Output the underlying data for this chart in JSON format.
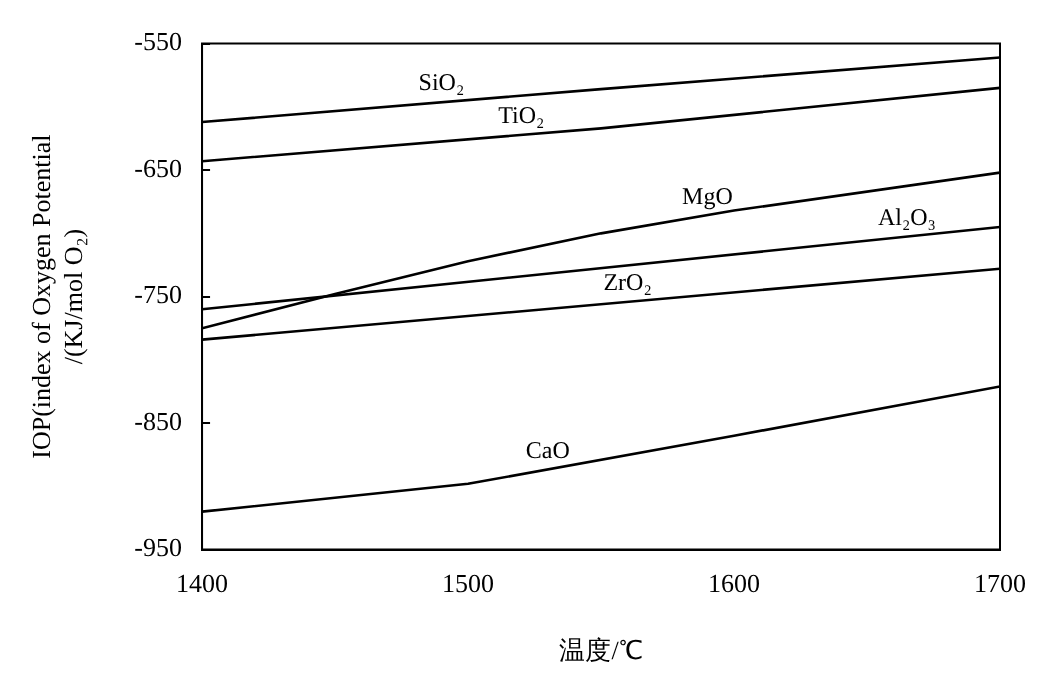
{
  "chart_data": {
    "type": "line",
    "xlabel": "温度/℃",
    "ylabel": "IOP(index of Oxygen Potential\n/(KJ/mol O₂)",
    "xlim": [
      1400,
      1700
    ],
    "xticks": [
      1400,
      1500,
      1600,
      1700
    ],
    "ylim": [
      -950,
      -550
    ],
    "yticks": [
      -950,
      -850,
      -750,
      -650,
      -550
    ],
    "grid": false,
    "legend": false,
    "marker": "none",
    "line_style": "solid",
    "series": [
      {
        "color": "#000000",
        "x": [
          1400,
          1550,
          1700
        ],
        "values": [
          -612,
          -586,
          -561
        ]
      },
      {
        "color": "#000000",
        "x": [
          1400,
          1550,
          1700
        ],
        "values": [
          -643,
          -617,
          -585
        ]
      },
      {
        "color": "#000000",
        "x": [
          1400,
          1450,
          1500,
          1550,
          1600,
          1700
        ],
        "values": [
          -775,
          -748,
          -722,
          -700,
          -682,
          -652
        ]
      },
      {
        "color": "#000000",
        "x": [
          1400,
          1700
        ],
        "values": [
          -760,
          -695
        ]
      },
      {
        "color": "#000000",
        "x": [
          1400,
          1700
        ],
        "values": [
          -784,
          -728
        ]
      },
      {
        "color": "#000000",
        "x": [
          1400,
          1500,
          1600,
          1700
        ],
        "values": [
          -920,
          -898,
          -860,
          -821
        ]
      }
    ],
    "annotations": [
      {
        "text": "SiO₂",
        "x": 1490,
        "y": -596
      },
      {
        "text": "TiO₂",
        "x": 1520,
        "y": -622
      },
      {
        "text": "MgO",
        "x": 1590,
        "y": -686
      },
      {
        "text": "Al₂O₃",
        "x": 1665,
        "y": -703
      },
      {
        "text": "ZrO₂",
        "x": 1560,
        "y": -754
      },
      {
        "text": "CaO",
        "x": 1530,
        "y": -887
      }
    ]
  }
}
